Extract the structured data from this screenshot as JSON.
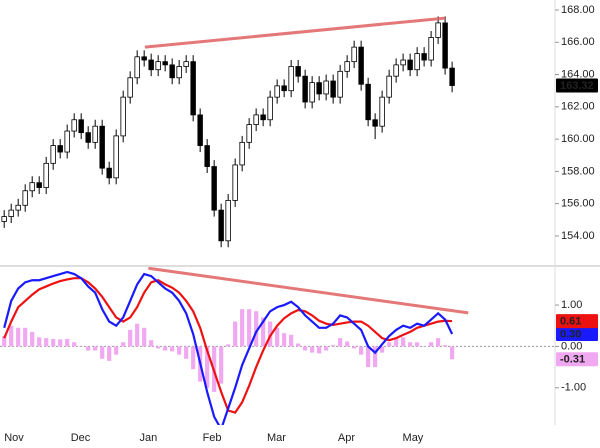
{
  "chart_data": [
    {
      "type": "candlestick",
      "x": [
        0,
        1,
        2,
        3,
        4,
        5,
        6,
        7,
        8,
        9,
        10,
        11,
        12,
        13,
        14,
        15,
        16,
        17,
        18,
        19,
        20,
        21,
        22,
        23,
        24,
        25,
        26,
        27,
        28,
        29,
        30,
        31,
        32,
        33,
        34,
        35,
        36,
        37,
        38,
        39,
        40,
        41,
        42,
        43,
        44,
        45,
        46,
        47,
        48,
        49,
        50,
        51,
        52,
        53,
        54,
        55,
        56,
        57,
        58,
        59,
        60,
        61,
        62,
        63,
        64
      ],
      "open": [
        154.9,
        155.2,
        155.6,
        155.9,
        156.8,
        157.3,
        157.0,
        158.5,
        159.6,
        159.2,
        160.5,
        161.2,
        160.4,
        159.8,
        160.8,
        158.2,
        157.6,
        160.2,
        162.6,
        163.8,
        165.1,
        164.9,
        164.3,
        164.8,
        164.6,
        163.8,
        164.5,
        164.8,
        161.5,
        159.6,
        158.3,
        155.6,
        153.7,
        156.2,
        158.4,
        159.8,
        160.9,
        161.5,
        161.2,
        162.6,
        163.3,
        163.0,
        164.5,
        163.9,
        162.3,
        163.5,
        162.8,
        163.6,
        162.6,
        164.2,
        164.8,
        165.7,
        163.4,
        161.2,
        160.8,
        162.6,
        163.9,
        164.6,
        164.9,
        164.3,
        165.3,
        164.9,
        166.3,
        167.2,
        164.4
      ],
      "high": [
        155.6,
        156.0,
        156.3,
        157.2,
        157.7,
        157.7,
        158.9,
        160.0,
        160.0,
        160.9,
        161.6,
        161.6,
        160.8,
        161.2,
        161.2,
        158.6,
        160.6,
        163.0,
        164.2,
        165.5,
        165.5,
        165.3,
        165.2,
        165.2,
        165.0,
        164.9,
        165.2,
        165.2,
        161.9,
        160.0,
        158.7,
        156.0,
        156.6,
        158.8,
        160.2,
        161.3,
        161.9,
        161.9,
        163.0,
        163.7,
        163.7,
        164.9,
        164.9,
        164.3,
        163.9,
        163.9,
        164.0,
        164.0,
        164.6,
        165.2,
        166.1,
        166.1,
        163.8,
        161.6,
        163.0,
        164.3,
        165.0,
        165.3,
        165.3,
        165.7,
        165.7,
        166.7,
        167.6,
        167.6,
        164.8
      ],
      "low": [
        154.5,
        154.8,
        155.2,
        155.5,
        156.4,
        156.6,
        156.6,
        158.1,
        158.8,
        158.8,
        160.1,
        160.0,
        159.4,
        159.4,
        157.8,
        157.2,
        157.2,
        159.8,
        162.2,
        163.4,
        164.5,
        163.9,
        163.9,
        164.2,
        163.4,
        163.4,
        164.1,
        161.1,
        159.2,
        157.9,
        155.2,
        153.3,
        153.3,
        155.8,
        158.0,
        159.4,
        160.5,
        160.8,
        160.8,
        162.2,
        162.6,
        162.6,
        163.5,
        161.9,
        161.9,
        162.4,
        162.4,
        162.2,
        162.2,
        163.8,
        164.4,
        163.0,
        160.8,
        160.0,
        160.4,
        162.2,
        163.5,
        164.2,
        163.9,
        163.9,
        164.5,
        164.5,
        165.9,
        164.0,
        162.9
      ],
      "close": [
        155.2,
        155.6,
        155.9,
        156.8,
        157.3,
        157.0,
        158.5,
        159.6,
        159.2,
        160.5,
        161.2,
        160.4,
        159.8,
        160.8,
        158.2,
        157.6,
        160.2,
        162.6,
        163.8,
        165.1,
        164.9,
        164.3,
        164.8,
        164.6,
        163.8,
        164.5,
        164.8,
        161.5,
        159.6,
        158.3,
        155.6,
        153.7,
        156.2,
        158.4,
        159.8,
        160.9,
        161.5,
        161.2,
        162.6,
        163.3,
        163.0,
        164.5,
        163.9,
        162.3,
        163.5,
        162.8,
        163.6,
        162.6,
        164.2,
        164.8,
        165.7,
        163.4,
        161.2,
        160.8,
        162.6,
        163.9,
        164.6,
        164.9,
        164.3,
        165.3,
        164.9,
        166.3,
        167.2,
        164.4,
        163.32
      ],
      "up_color": "#ffffff",
      "down_color": "#000000",
      "xlim": [
        -0.6,
        78.7
      ],
      "ylim": [
        152.2,
        168.62
      ],
      "yticks": [
        {
          "value": 154,
          "label": "154.00"
        },
        {
          "value": 156,
          "label": "156.00"
        },
        {
          "value": 158,
          "label": "158.00"
        },
        {
          "value": 160,
          "label": "160.00"
        },
        {
          "value": 162,
          "label": "162.00"
        },
        {
          "value": 164,
          "label": "164.00"
        },
        {
          "value": 166,
          "label": "166.00"
        },
        {
          "value": 168,
          "label": "168.00"
        }
      ],
      "trendlines": [
        {
          "x": [
            20.1,
            63
          ],
          "y": [
            165.7,
            167.5
          ],
          "color": "#e06060"
        }
      ]
    },
    {
      "type": "macd",
      "x": [
        0,
        1,
        2,
        3,
        4,
        5,
        6,
        7,
        8,
        9,
        10,
        11,
        12,
        13,
        14,
        15,
        16,
        17,
        18,
        19,
        20,
        21,
        22,
        23,
        24,
        25,
        26,
        27,
        28,
        29,
        30,
        31,
        32,
        33,
        34,
        35,
        36,
        37,
        38,
        39,
        40,
        41,
        42,
        43,
        44,
        45,
        46,
        47,
        48,
        49,
        50,
        51,
        52,
        53,
        54,
        55,
        56,
        57,
        58,
        59,
        60,
        61,
        62,
        63,
        64
      ],
      "series": [
        {
          "color": "#1a1aff",
          "last_label": "0.30",
          "values": [
            0.45,
            1.1,
            1.4,
            1.55,
            1.6,
            1.6,
            1.65,
            1.7,
            1.75,
            1.8,
            1.75,
            1.65,
            1.45,
            1.3,
            0.9,
            0.6,
            0.5,
            0.7,
            1.1,
            1.5,
            1.75,
            1.7,
            1.55,
            1.4,
            1.3,
            1.1,
            0.8,
            0.3,
            -0.4,
            -1.1,
            -1.7,
            -2.0,
            -1.5,
            -1.0,
            -0.45,
            -0.05,
            0.35,
            0.6,
            0.85,
            0.95,
            1.0,
            1.08,
            0.95,
            0.75,
            0.6,
            0.45,
            0.45,
            0.55,
            0.75,
            0.7,
            0.55,
            0.4,
            0.0,
            -0.15,
            0.05,
            0.25,
            0.4,
            0.5,
            0.45,
            0.55,
            0.5,
            0.65,
            0.8,
            0.65,
            0.3
          ]
        },
        {
          "color": "#ee1111",
          "values": [
            0.2,
            0.6,
            0.95,
            1.1,
            1.25,
            1.38,
            1.45,
            1.52,
            1.58,
            1.62,
            1.65,
            1.65,
            1.55,
            1.4,
            1.2,
            0.95,
            0.7,
            0.6,
            0.7,
            0.95,
            1.3,
            1.55,
            1.6,
            1.5,
            1.42,
            1.3,
            1.1,
            0.85,
            0.45,
            -0.1,
            -0.6,
            -1.1,
            -1.55,
            -1.6,
            -1.35,
            -0.95,
            -0.5,
            -0.1,
            0.25,
            0.5,
            0.68,
            0.8,
            0.88,
            0.85,
            0.75,
            0.62,
            0.55,
            0.52,
            0.55,
            0.58,
            0.6,
            0.6,
            0.5,
            0.35,
            0.2,
            0.15,
            0.2,
            0.28,
            0.35,
            0.45,
            0.5,
            0.55,
            0.6,
            0.62,
            0.61
          ]
        }
      ],
      "histogram": {
        "color": "#f0a8f0",
        "values": [
          0.25,
          0.5,
          0.45,
          0.45,
          0.35,
          0.22,
          0.2,
          0.18,
          0.17,
          0.18,
          0.1,
          0,
          -0.1,
          -0.1,
          -0.3,
          -0.35,
          -0.2,
          0.1,
          0.4,
          0.55,
          0.45,
          0.15,
          -0.05,
          -0.1,
          -0.12,
          -0.2,
          -0.3,
          -0.55,
          -0.85,
          -1.0,
          -1.1,
          -0.9,
          0.05,
          0.6,
          0.9,
          0.9,
          0.85,
          0.7,
          0.6,
          0.45,
          0.32,
          0.28,
          0.07,
          -0.1,
          -0.15,
          -0.17,
          -0.1,
          0.03,
          0.2,
          0.12,
          -0.05,
          -0.2,
          -0.5,
          -0.5,
          -0.15,
          0.1,
          0.2,
          0.22,
          0.1,
          0.1,
          0,
          0.1,
          0.2,
          0.03,
          -0.31
        ]
      },
      "xlim": [
        -0.6,
        78.7
      ],
      "ylim": [
        -1.9,
        1.92
      ],
      "yticks": [
        {
          "value": -1,
          "label": "-1.00"
        },
        {
          "value": 0,
          "label": "0.00"
        },
        {
          "value": 1,
          "label": "1.00"
        }
      ],
      "xticks": [
        {
          "value": 1.4,
          "label": "Nov"
        },
        {
          "value": 10.9,
          "label": "Dec"
        },
        {
          "value": 20.6,
          "label": "Jan"
        },
        {
          "value": 29.7,
          "label": "Feb"
        },
        {
          "value": 38.9,
          "label": "Mar"
        },
        {
          "value": 48.9,
          "label": "Apr"
        },
        {
          "value": 58.4,
          "label": "May"
        }
      ],
      "trendlines": [
        {
          "x": [
            20.6,
            66.3
          ],
          "y": [
            1.89,
            0.81
          ],
          "color": "#e06060"
        }
      ]
    }
  ]
}
